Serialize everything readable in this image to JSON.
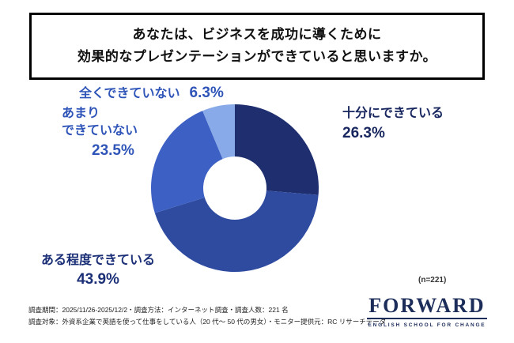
{
  "title": {
    "line1": "あなたは、ビジネスを成功に導くために",
    "line2": "効果的なプレゼンテーションができていると思いますか。"
  },
  "chart_data": {
    "type": "pie",
    "donut": true,
    "title": "あなたは、ビジネスを成功に導くために効果的なプレゼンテーションができていると思いますか。",
    "start_angle_deg": -90,
    "direction": "clockwise",
    "sample_note": "(n=221)",
    "segments": [
      {
        "label": "十分にできている",
        "value": 26.3,
        "pct_label": "26.3%",
        "color": "#1e2e6e",
        "label_color": "#17265e"
      },
      {
        "label": "ある程度できている",
        "value": 43.9,
        "pct_label": "43.9%",
        "color": "#2e4ba0",
        "label_color": "#1b2f77"
      },
      {
        "label": "あまりできていない",
        "value": 23.5,
        "pct_label": "23.5%",
        "color": "#3d60c4",
        "label_color": "#2f55b8",
        "label_lines": [
          "あまり",
          "できていない"
        ]
      },
      {
        "label": "全くできていない",
        "value": 6.3,
        "pct_label": "6.3%",
        "color": "#88aae8",
        "label_color": "#2f55b8"
      }
    ]
  },
  "footer": {
    "line1": "調査期間：2025/11/26-2025/12/2・調査方法：インターネット調査・調査人数：221 名",
    "line2": "調査対象：外資系企業で英語を使って仕事をしている人（20 代～ 50 代の男女）・モニター提供元：RC リサーチデータ"
  },
  "logo": {
    "name": "FORWARD",
    "tagline": "ENGLISH SCHOOL FOR CHANGE"
  }
}
